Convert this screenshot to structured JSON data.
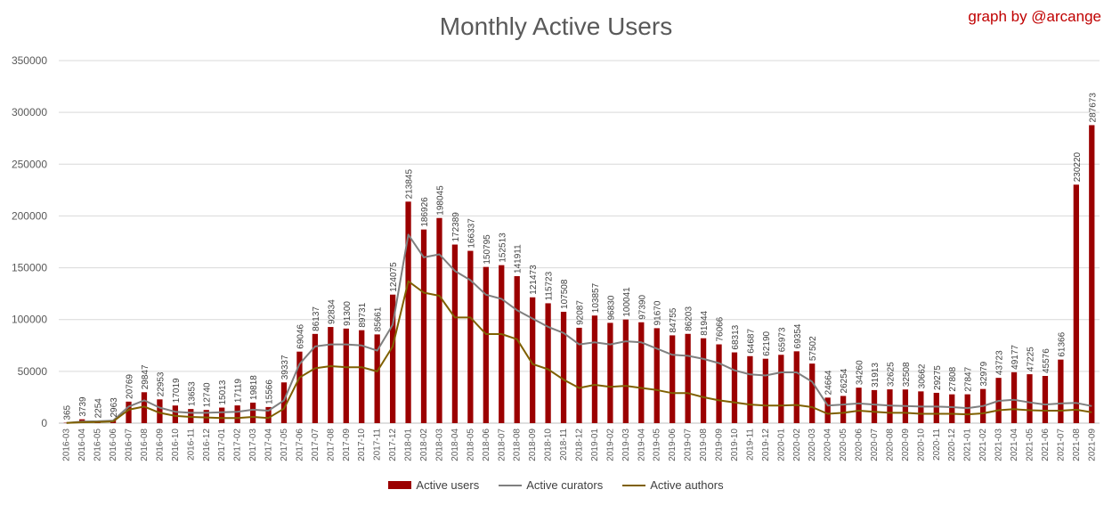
{
  "title": "Monthly Active Users",
  "credit": "graph by @arcange",
  "chart_data": {
    "type": "bar",
    "title": "Monthly Active Users",
    "ylim": [
      0,
      350000
    ],
    "yticks": [
      "0",
      "50000",
      "100000",
      "150000",
      "200000",
      "250000",
      "300000",
      "350000"
    ],
    "grid": true,
    "legend_position": "bottom",
    "categories": [
      "2016-03",
      "2016-04",
      "2016-05",
      "2016-06",
      "2016-07",
      "2016-08",
      "2016-09",
      "2016-10",
      "2016-11",
      "2016-12",
      "2017-01",
      "2017-02",
      "2017-03",
      "2017-04",
      "2017-05",
      "2017-06",
      "2017-07",
      "2017-08",
      "2017-09",
      "2017-10",
      "2017-11",
      "2017-12",
      "2018-01",
      "2018-02",
      "2018-03",
      "2018-04",
      "2018-05",
      "2018-06",
      "2018-07",
      "2018-08",
      "2018-09",
      "2018-10",
      "2018-11",
      "2018-12",
      "2019-01",
      "2019-02",
      "2019-03",
      "2019-04",
      "2019-05",
      "2019-06",
      "2019-07",
      "2019-08",
      "2019-09",
      "2019-10",
      "2019-11",
      "2019-12",
      "2020-01",
      "2020-02",
      "2020-03",
      "2020-04",
      "2020-05",
      "2020-06",
      "2020-07",
      "2020-08",
      "2020-09",
      "2020-10",
      "2020-11",
      "2020-12",
      "2021-01",
      "2021-02",
      "2021-03",
      "2021-04",
      "2021-05",
      "2021-06",
      "2021-07",
      "2021-08",
      "2021-09"
    ],
    "series": [
      {
        "name": "Active users",
        "kind": "bar",
        "color": "#9b0000",
        "values": [
          365,
          3739,
          2254,
          2963,
          20769,
          29847,
          22953,
          17019,
          13653,
          12740,
          15013,
          17119,
          19818,
          15566,
          39337,
          69046,
          86137,
          92834,
          91300,
          89731,
          85661,
          124075,
          213845,
          186926,
          198045,
          172389,
          166337,
          150795,
          152513,
          141911,
          121473,
          115723,
          107508,
          92087,
          103857,
          96830,
          100041,
          97390,
          91670,
          84755,
          86203,
          81944,
          76066,
          68313,
          64687,
          62190,
          65973,
          69354,
          57502,
          24664,
          26254,
          34260,
          31913,
          32625,
          32508,
          30662,
          29275,
          27808,
          27847,
          32979,
          43723,
          49177,
          47225,
          45576,
          61366,
          230220,
          287673
        ]
      },
      {
        "name": "Active curators",
        "kind": "line",
        "color": "#7f7f7f",
        "values": [
          300,
          1500,
          1800,
          2500,
          16000,
          22000,
          15000,
          11000,
          10000,
          10000,
          10500,
          11000,
          13000,
          12000,
          22000,
          57000,
          74000,
          76000,
          76000,
          75000,
          70000,
          95000,
          182000,
          160000,
          163000,
          147000,
          138000,
          124000,
          120000,
          109000,
          101000,
          93000,
          87000,
          76000,
          78000,
          76000,
          79000,
          78000,
          72000,
          66000,
          65000,
          62000,
          58000,
          51000,
          47000,
          46000,
          49000,
          49000,
          40000,
          17000,
          18000,
          19000,
          18000,
          17000,
          16500,
          16000,
          16000,
          15500,
          14500,
          16500,
          21500,
          22500,
          20000,
          18000,
          19000,
          19500,
          16500
        ]
      },
      {
        "name": "Active authors",
        "kind": "line",
        "color": "#7f6000",
        "values": [
          200,
          900,
          1100,
          1600,
          13000,
          16000,
          10000,
          7000,
          6000,
          5500,
          5000,
          5000,
          6000,
          5000,
          14000,
          44000,
          53000,
          55000,
          54000,
          54000,
          50000,
          74000,
          137000,
          126000,
          123000,
          102000,
          102000,
          86000,
          86000,
          81000,
          57000,
          52000,
          42000,
          34000,
          37000,
          35000,
          36000,
          34000,
          32000,
          29000,
          29000,
          25000,
          22000,
          20000,
          18000,
          17000,
          17000,
          17500,
          15500,
          9000,
          10000,
          12000,
          11000,
          10000,
          10000,
          9000,
          9000,
          9000,
          8500,
          9500,
          12500,
          13500,
          12500,
          12000,
          12000,
          13000,
          10500
        ]
      }
    ]
  }
}
